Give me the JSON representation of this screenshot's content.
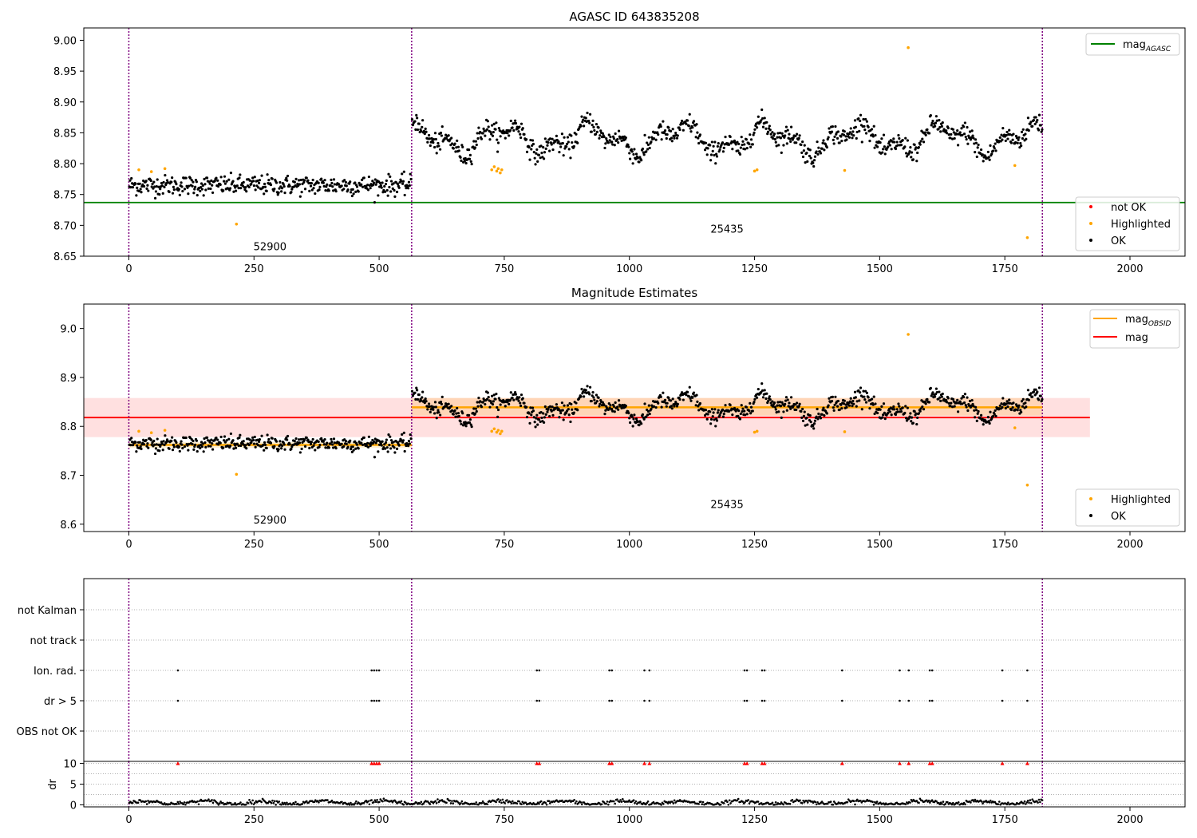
{
  "chart_data": [
    {
      "type": "scatter",
      "title": "AGASC ID 643835208",
      "xlim": [
        -90,
        2110
      ],
      "ylim": [
        8.65,
        9.02
      ],
      "x_ticks": [
        0,
        250,
        500,
        750,
        1000,
        1250,
        1500,
        1750,
        2000
      ],
      "x_tick_labels": [
        "0",
        "250",
        "500",
        "750",
        "1000",
        "1250",
        "1500",
        "1750",
        "2000"
      ],
      "y_ticks": [
        8.65,
        8.7,
        8.75,
        8.8,
        8.85,
        8.9,
        8.95,
        9.0
      ],
      "y_tick_labels": [
        "8.65",
        "8.70",
        "8.75",
        "8.80",
        "8.85",
        "8.90",
        "8.95",
        "9.00"
      ],
      "obsid_boundaries": [
        0,
        565,
        1825
      ],
      "agasc_mag": 8.737,
      "obsid_labels": [
        {
          "text": "52900",
          "x": 282,
          "y": 8.66
        },
        {
          "text": "25435",
          "x": 1195,
          "y": 8.688
        }
      ],
      "legend_top": [
        {
          "label": "mag",
          "subscript": "AGASC",
          "color": "#008000"
        }
      ],
      "legend_bottom": [
        {
          "label": "not OK",
          "color": "#ff0000"
        },
        {
          "label": "Highlighted",
          "color": "#ffa500"
        },
        {
          "label": "OK",
          "color": "#000000"
        }
      ],
      "highlighted_points": {
        "x": [
          20,
          45,
          72,
          215,
          725,
          730,
          735,
          738,
          742,
          745,
          1250,
          1255,
          1430,
          1557,
          1770,
          1795
        ],
        "y": [
          8.79,
          8.787,
          8.792,
          8.702,
          8.79,
          8.795,
          8.788,
          8.792,
          8.785,
          8.79,
          8.788,
          8.79,
          8.789,
          8.988,
          8.797,
          8.68
        ]
      },
      "trend_segments": [
        {
          "x_start": 0,
          "x_end": 565,
          "mean": 8.765,
          "amplitude": 0.0
        },
        {
          "x_start": 565,
          "x_end": 1825,
          "mean": 8.84,
          "amplitude": 0.03
        }
      ]
    },
    {
      "type": "scatter",
      "title": "Magnitude Estimates",
      "xlim": [
        -90,
        2110
      ],
      "ylim": [
        8.585,
        9.05
      ],
      "x_ticks": [
        0,
        250,
        500,
        750,
        1000,
        1250,
        1500,
        1750,
        2000
      ],
      "x_tick_labels": [
        "0",
        "250",
        "500",
        "750",
        "1000",
        "1250",
        "1500",
        "1750",
        "2000"
      ],
      "y_ticks": [
        8.6,
        8.7,
        8.8,
        8.9,
        9.0
      ],
      "y_tick_labels": [
        "8.6",
        "8.7",
        "8.8",
        "8.9",
        "9.0"
      ],
      "obsid_boundaries": [
        0,
        565,
        1825
      ],
      "mag": 8.818,
      "mag_band": [
        8.778,
        8.858
      ],
      "mag_extent": [
        -90,
        1920
      ],
      "obsid_mags": [
        {
          "x_start": 0,
          "x_end": 565,
          "mag": 8.762,
          "band": [
            8.756,
            8.768
          ]
        },
        {
          "x_start": 565,
          "x_end": 1825,
          "mag": 8.839,
          "band": [
            8.822,
            8.858
          ]
        }
      ],
      "obsid_labels": [
        {
          "text": "52900",
          "x": 282,
          "y": 8.601
        },
        {
          "text": "25435",
          "x": 1195,
          "y": 8.633
        }
      ],
      "legend_top": [
        {
          "label": "mag",
          "subscript": "OBSID",
          "color": "#ffa500"
        },
        {
          "label": "mag",
          "subscript": "",
          "color": "#ff0000"
        }
      ],
      "legend_bottom": [
        {
          "label": "Highlighted",
          "color": "#ffa500"
        },
        {
          "label": "OK",
          "color": "#000000"
        }
      ]
    },
    {
      "type": "scatter",
      "title": "",
      "xlim": [
        -90,
        2110
      ],
      "x_ticks": [
        0,
        250,
        500,
        750,
        1000,
        1250,
        1500,
        1750,
        2000
      ],
      "x_tick_labels": [
        "0",
        "250",
        "500",
        "750",
        "1000",
        "1250",
        "1500",
        "1750",
        "2000"
      ],
      "flag_rows": [
        "not Kalman",
        "not track",
        "Ion. rad.",
        "dr > 5",
        "OBS not OK"
      ],
      "flag_events": {
        "Ion. rad.": [
          98,
          485,
          490,
          495,
          500,
          815,
          820,
          960,
          965,
          1030,
          1040,
          1230,
          1235,
          1265,
          1270,
          1425,
          1540,
          1558,
          1600,
          1605,
          1745,
          1795
        ],
        "dr > 5": [
          98,
          485,
          490,
          495,
          500,
          815,
          820,
          960,
          965,
          1030,
          1040,
          1230,
          1235,
          1265,
          1270,
          1425,
          1540,
          1558,
          1600,
          1605,
          1745,
          1795
        ]
      },
      "dr_ylabel": "dr",
      "dr_ylim": [
        -0.5,
        10.5
      ],
      "dr_ticks": [
        0,
        5,
        10
      ],
      "dr_tick_labels": [
        "0",
        "5",
        "10"
      ],
      "dr_clipped_x": [
        98,
        485,
        490,
        495,
        500,
        815,
        820,
        960,
        965,
        1030,
        1040,
        1230,
        1235,
        1265,
        1270,
        1425,
        1540,
        1558,
        1600,
        1605,
        1745,
        1795
      ],
      "dr_clipped_value": 10,
      "obsid_boundaries": [
        0,
        565,
        1825
      ],
      "colors": {
        "ok": "#000000",
        "clipped": "#ff0000",
        "boundary": "#800080",
        "grid": "#b0b0b0"
      }
    }
  ]
}
